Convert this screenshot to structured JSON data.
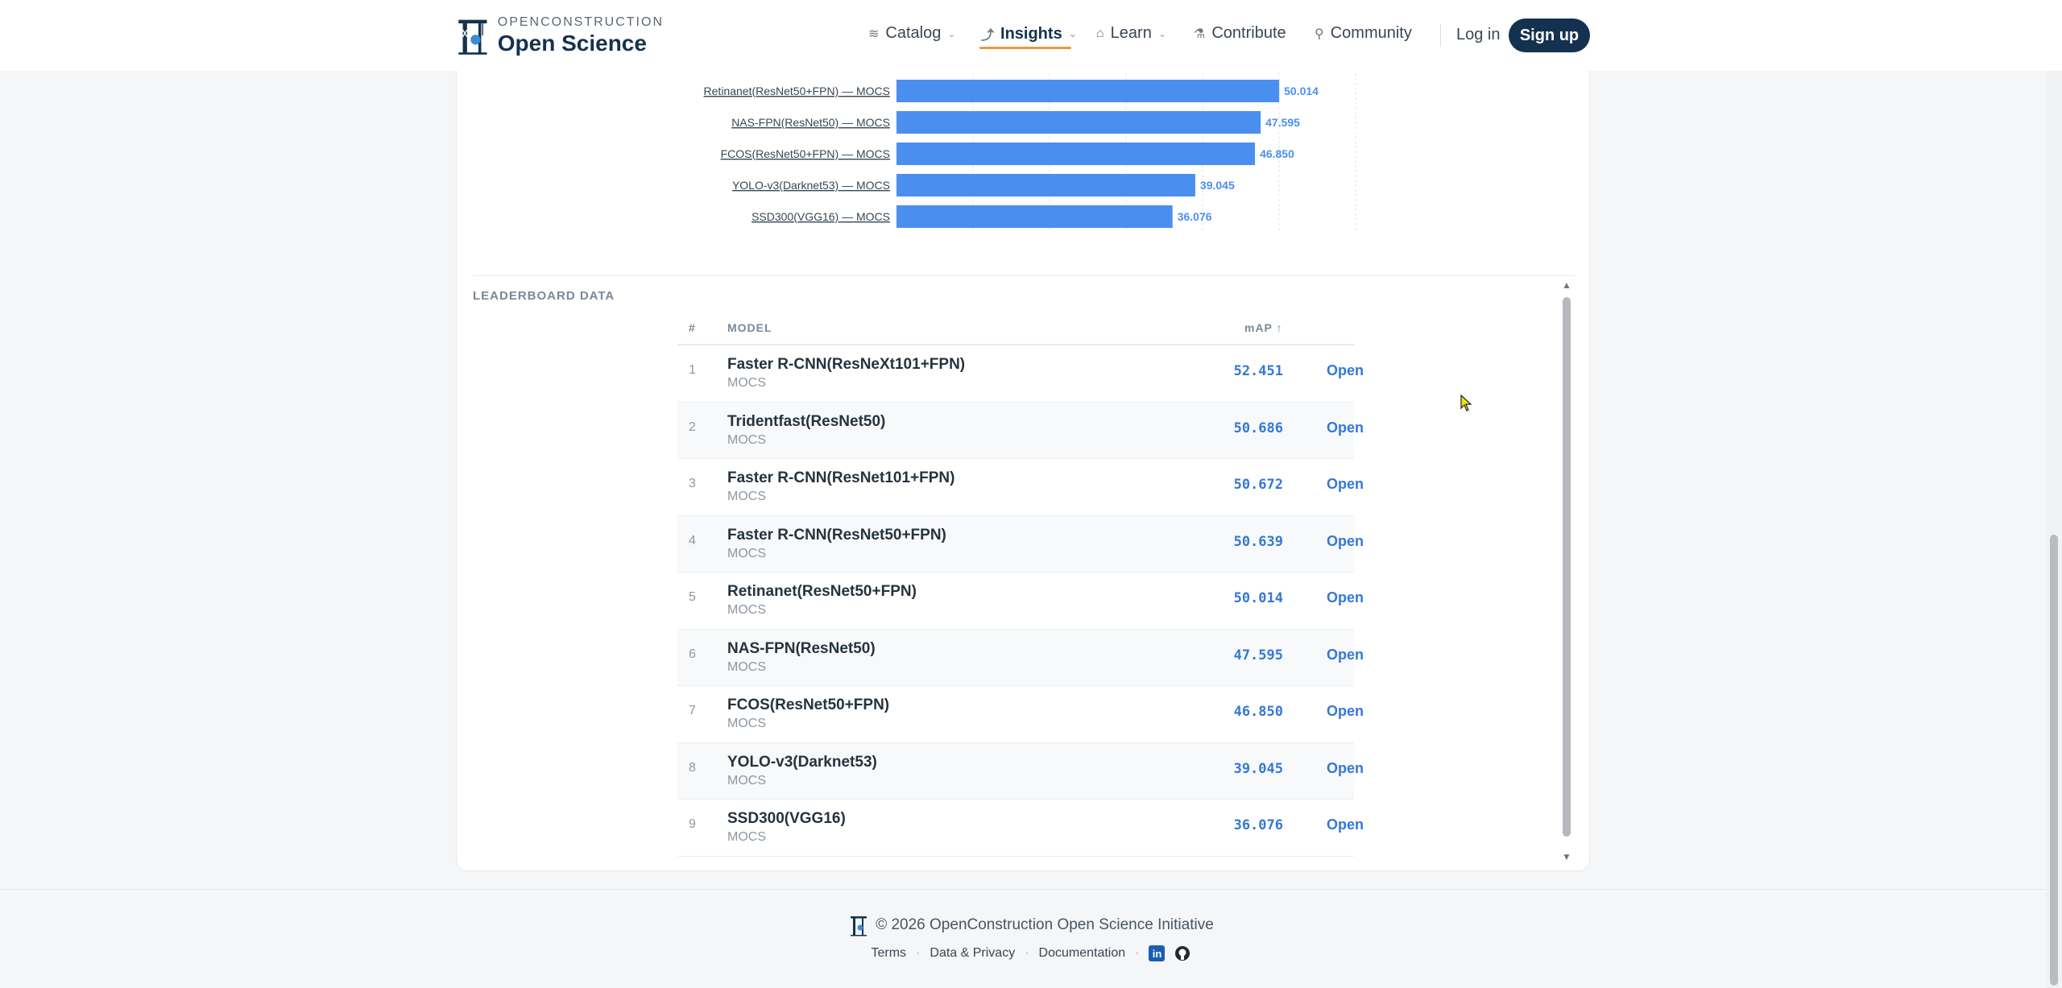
{
  "header": {
    "logo_small": "OPENCONSTRUCTION",
    "logo_big": "Open Science",
    "nav": [
      {
        "label": "Catalog",
        "icon": "layers-icon"
      },
      {
        "label": "Insights",
        "icon": "trend-icon"
      },
      {
        "label": "Learn",
        "icon": "graduation-cap-icon"
      },
      {
        "label": "Contribute",
        "icon": "flask-icon"
      },
      {
        "label": "Community",
        "icon": "person-icon"
      }
    ],
    "login": "Log in",
    "signup": "Sign up"
  },
  "chart_data": {
    "type": "bar",
    "orientation": "horizontal",
    "categories": [
      "Retinanet(ResNet50+FPN) — MOCS",
      "NAS-FPN(ResNet50) — MOCS",
      "FCOS(ResNet50+FPN) — MOCS",
      "YOLO-v3(Darknet53) — MOCS",
      "SSD300(VGG16) — MOCS"
    ],
    "values": [
      50.014,
      47.595,
      46.85,
      39.045,
      36.076
    ],
    "value_labels": [
      "50.014",
      "47.595",
      "46.850",
      "39.045",
      "36.076"
    ],
    "xlim": [
      0,
      60
    ],
    "grid": true,
    "bar_color": "#4a8ff0",
    "label_color": "#4a8ff0"
  },
  "leaderboard": {
    "title": "LEADERBOARD DATA",
    "headers": {
      "rank": "#",
      "model": "MODEL",
      "metric": "mAP ↑"
    },
    "open_label": "Open",
    "rows": [
      {
        "rank": "1",
        "model": "Faster R-CNN(ResNeXt101+FPN)",
        "dataset": "MOCS",
        "score": "52.451"
      },
      {
        "rank": "2",
        "model": "Tridentfast(ResNet50)",
        "dataset": "MOCS",
        "score": "50.686"
      },
      {
        "rank": "3",
        "model": "Faster R-CNN(ResNet101+FPN)",
        "dataset": "MOCS",
        "score": "50.672"
      },
      {
        "rank": "4",
        "model": "Faster R-CNN(ResNet50+FPN)",
        "dataset": "MOCS",
        "score": "50.639"
      },
      {
        "rank": "5",
        "model": "Retinanet(ResNet50+FPN)",
        "dataset": "MOCS",
        "score": "50.014"
      },
      {
        "rank": "6",
        "model": "NAS-FPN(ResNet50)",
        "dataset": "MOCS",
        "score": "47.595"
      },
      {
        "rank": "7",
        "model": "FCOS(ResNet50+FPN)",
        "dataset": "MOCS",
        "score": "46.850"
      },
      {
        "rank": "8",
        "model": "YOLO-v3(Darknet53)",
        "dataset": "MOCS",
        "score": "39.045"
      },
      {
        "rank": "9",
        "model": "SSD300(VGG16)",
        "dataset": "MOCS",
        "score": "36.076"
      }
    ]
  },
  "footer": {
    "copyright": "© 2026 OpenConstruction Open Science Initiative",
    "links": [
      "Terms",
      "Data & Privacy",
      "Documentation"
    ],
    "separator": "·",
    "linkedin_label": "in"
  }
}
